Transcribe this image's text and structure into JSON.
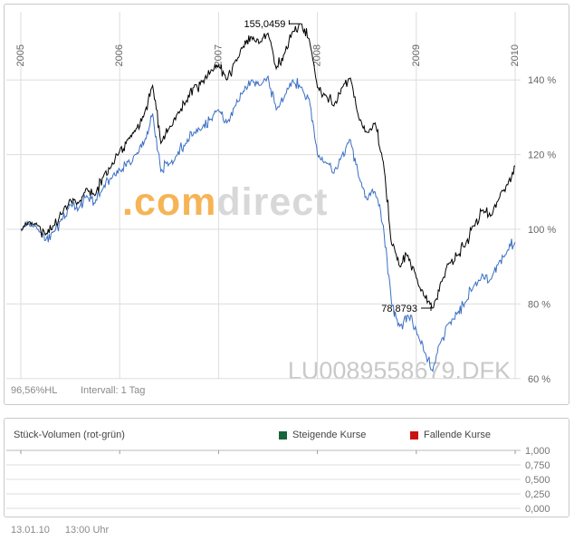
{
  "price_panel": {
    "watermark_prefix": ".com",
    "watermark_suffix": "direct",
    "instrument_watermark": "LU0089558679.DFK",
    "status_value": "96,56%HL",
    "interval_label": "Intervall: 1 Tag"
  },
  "volume_panel": {
    "title": "Stück-Volumen (rot-grün)",
    "legend": [
      {
        "label": "Steigende Kurse",
        "color": "#17643b"
      },
      {
        "label": "Fallende Kurse",
        "color": "#cc1111"
      }
    ],
    "y_ticks": [
      "1,000",
      "0,750",
      "0,500",
      "0,250",
      "0,000"
    ]
  },
  "footer": {
    "date": "13.01.10",
    "time": "13:00 Uhr"
  },
  "chart_data": {
    "type": "line",
    "x_start": 2005.0,
    "x_step": 0.0833333,
    "x_ticks": [
      2005,
      2006,
      2007,
      2008,
      2009,
      2010
    ],
    "x_tick_labels": [
      "2005",
      "2006",
      "2007",
      "2008",
      "2009",
      "2010"
    ],
    "y_ticks": [
      140,
      120,
      100,
      80,
      60
    ],
    "y_tick_labels": [
      "140 %",
      "120 %",
      "100 %",
      "80 %",
      "60 %"
    ],
    "xlim": [
      2004.95,
      2010.1
    ],
    "ylim": [
      57,
      158
    ],
    "grid": true,
    "series": [
      {
        "name": "fund-blue",
        "color": "#3a6fc4",
        "values": [
          100,
          101.5,
          100,
          97,
          99.5,
          102.5,
          106.5,
          105.5,
          109,
          107,
          111,
          113.5,
          116,
          118,
          120,
          123.5,
          131,
          115.5,
          117.5,
          120,
          123,
          126,
          127,
          129.5,
          132,
          128.5,
          133,
          137,
          140,
          138.5,
          141,
          132,
          135.5,
          140,
          138,
          135,
          120,
          118,
          115,
          120,
          124,
          114,
          108,
          110,
          101,
          80,
          74,
          77,
          73,
          67,
          62,
          70,
          75,
          77.5,
          80.5,
          85,
          88,
          86.5,
          91,
          94,
          96.56
        ]
      },
      {
        "name": "benchmark-black",
        "color": "#000000",
        "values": [
          100,
          102,
          101,
          98.5,
          101,
          104,
          108,
          107,
          111,
          109,
          114,
          117,
          121,
          124,
          127,
          131,
          138.5,
          123,
          127,
          131,
          134,
          138,
          139.5,
          142,
          144,
          140,
          145,
          149,
          151.5,
          150,
          152.5,
          143,
          147,
          153,
          155.0459,
          151,
          138,
          136,
          133,
          138,
          140.5,
          130,
          126,
          128.5,
          118,
          96,
          90,
          93,
          87,
          82,
          78.8793,
          86,
          91,
          93,
          96,
          101,
          105,
          103.5,
          108,
          112,
          117
        ]
      }
    ],
    "annotations": [
      {
        "type": "high",
        "label": "155,0459",
        "x": 2007.8333,
        "y": 155.0459,
        "series": "benchmark-black"
      },
      {
        "type": "low",
        "label": "78,8793",
        "x": 2009.1667,
        "y": 78.8793,
        "series": "benchmark-black"
      }
    ]
  }
}
